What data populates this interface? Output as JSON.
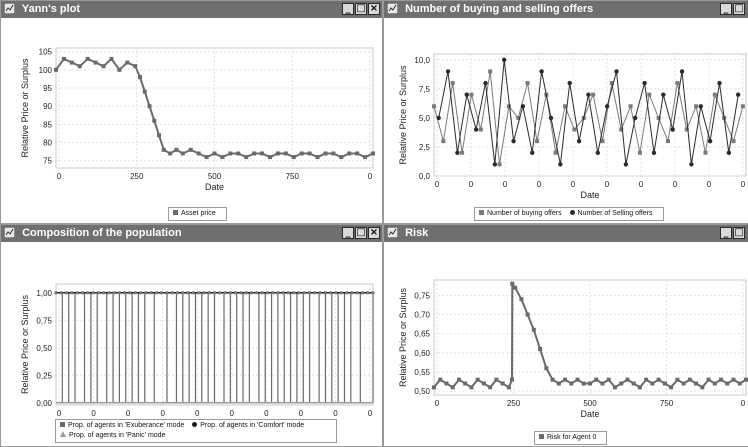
{
  "windows": [
    {
      "title": "Yann's plot",
      "chart_data": {
        "type": "line",
        "ylabel": "Relative Price or Surplus",
        "xlabel": "Date",
        "x_ticks": [
          "0",
          "250",
          "500",
          "750",
          "0"
        ],
        "y_ticks": [
          "75",
          "80",
          "85",
          "90",
          "95",
          "100",
          "105"
        ],
        "ylim": [
          73,
          106
        ],
        "xlim": [
          0,
          1000
        ],
        "series": [
          {
            "name": "Asset price",
            "color": "#6a6a6a",
            "marker": "square",
            "x": [
              0,
              25,
              50,
              75,
              100,
              125,
              150,
              175,
              200,
              225,
              250,
              265,
              280,
              295,
              310,
              325,
              340,
              360,
              380,
              400,
              425,
              450,
              475,
              500,
              525,
              550,
              575,
              600,
              625,
              650,
              675,
              700,
              725,
              750,
              775,
              800,
              825,
              850,
              875,
              900,
              925,
              950,
              975,
              1000
            ],
            "y": [
              100,
              103,
              102,
              101,
              103,
              102,
              101,
              103,
              100,
              102,
              101,
              98,
              94,
              90,
              86,
              82,
              78,
              77,
              78,
              77,
              78,
              77,
              76,
              77,
              76,
              77,
              77,
              76,
              77,
              77,
              76,
              77,
              77,
              76,
              77,
              77,
              76,
              77,
              77,
              76,
              77,
              77,
              76,
              77
            ]
          }
        ]
      },
      "legend": [
        "Asset price"
      ]
    },
    {
      "title": "Number of buying and selling offers",
      "chart_data": {
        "type": "line",
        "ylabel": "Relative Price or Surplus",
        "xlabel": "Date",
        "x_ticks": [
          "0",
          "0",
          "0",
          "0",
          "0",
          "0",
          "0",
          "0",
          "0",
          "0"
        ],
        "y_ticks": [
          "0,0",
          "2,5",
          "5,0",
          "7,5",
          "10,0"
        ],
        "ylim": [
          0,
          10.5
        ],
        "xlim": [
          0,
          100
        ],
        "series": [
          {
            "name": "Number of buying offers",
            "color": "#7a7a7a",
            "marker": "square",
            "x": [
              0,
              3,
              6,
              9,
              12,
              15,
              18,
              21,
              24,
              27,
              30,
              33,
              36,
              39,
              42,
              45,
              48,
              51,
              54,
              57,
              60,
              63,
              66,
              69,
              72,
              75,
              78,
              81,
              84,
              87,
              90,
              93,
              96,
              99
            ],
            "y": [
              6,
              3,
              8,
              2,
              7,
              4,
              9,
              1,
              6,
              5,
              8,
              3,
              7,
              2,
              6,
              4,
              5,
              7,
              3,
              8,
              4,
              6,
              2,
              7,
              5,
              3,
              8,
              4,
              6,
              2,
              7,
              5,
              3,
              6
            ]
          },
          {
            "name": "Number of Selling offers",
            "color": "#2a2a2a",
            "marker": "circle",
            "x": [
              1.5,
              4.5,
              7.5,
              10.5,
              13.5,
              16.5,
              19.5,
              22.5,
              25.5,
              28.5,
              31.5,
              34.5,
              37.5,
              40.5,
              43.5,
              46.5,
              49.5,
              52.5,
              55.5,
              58.5,
              61.5,
              64.5,
              67.5,
              70.5,
              73.5,
              76.5,
              79.5,
              82.5,
              85.5,
              88.5,
              91.5,
              94.5,
              97.5
            ],
            "y": [
              5,
              9,
              2,
              7,
              4,
              8,
              1,
              10,
              3,
              6,
              2,
              9,
              5,
              1,
              8,
              3,
              7,
              2,
              6,
              9,
              1,
              5,
              8,
              2,
              7,
              4,
              9,
              1,
              6,
              3,
              8,
              2,
              7
            ]
          }
        ]
      },
      "legend": [
        "Number of buying offers",
        "Number of Selling offers"
      ]
    },
    {
      "title": "Composition of the population",
      "chart_data": {
        "type": "line",
        "ylabel": "Relative Price or Surplus",
        "xlabel": "Date",
        "x_ticks": [
          "0",
          "0",
          "0",
          "0",
          "0",
          "0",
          "0",
          "0",
          "0",
          "0"
        ],
        "y_ticks": [
          "0,00",
          "0,25",
          "0,50",
          "0,75",
          "1,00"
        ],
        "ylim": [
          -0.02,
          1.08
        ],
        "xlim": [
          0,
          100
        ],
        "series": [
          {
            "name": "Prop. of agents in 'Exuberance' mode",
            "color": "#6a6a6a",
            "marker": "square",
            "switch_x": [
              2,
              4,
              6,
              9,
              11,
              13,
              16,
              18,
              20,
              22,
              24,
              26,
              28,
              31,
              35,
              38,
              40,
              42,
              44,
              46,
              48,
              50,
              53,
              55,
              57,
              59,
              61,
              64,
              66,
              68,
              70,
              72,
              74,
              76,
              78,
              80,
              83,
              85,
              87,
              89,
              91,
              93,
              96
            ]
          },
          {
            "name": "Prop. of agents in 'Comfort' mode",
            "color": "#1a1a1a",
            "marker": "circle"
          },
          {
            "name": "Prop. of agents in 'Panic' mode",
            "color": "#9a9a9a",
            "marker": "triangle"
          }
        ]
      },
      "legend": [
        "Prop. of agents in 'Exuberance' mode",
        "Prop. of agents in 'Comfort' mode",
        "Prop. of agents in 'Panic' mode"
      ]
    },
    {
      "title": "Risk",
      "chart_data": {
        "type": "line",
        "ylabel": "Relative Price or Surplus",
        "xlabel": "Date",
        "x_ticks": [
          "0",
          "250",
          "500",
          "750",
          "0"
        ],
        "y_ticks": [
          "0,50",
          "0,55",
          "0,60",
          "0,65",
          "0,70",
          "0,75"
        ],
        "ylim": [
          0.49,
          0.79
        ],
        "xlim": [
          0,
          1000
        ],
        "series": [
          {
            "name": "Risk for Agent 0",
            "color": "#6a6a6a",
            "marker": "square",
            "x": [
              0,
              20,
              40,
              60,
              80,
              100,
              120,
              140,
              160,
              180,
              200,
              220,
              240,
              250,
              251,
              260,
              280,
              300,
              320,
              340,
              360,
              380,
              400,
              420,
              440,
              460,
              480,
              500,
              520,
              540,
              560,
              580,
              600,
              620,
              640,
              660,
              680,
              700,
              720,
              740,
              760,
              780,
              800,
              820,
              840,
              860,
              880,
              900,
              920,
              940,
              960,
              980,
              1000
            ],
            "y": [
              0.51,
              0.53,
              0.52,
              0.51,
              0.53,
              0.52,
              0.51,
              0.53,
              0.52,
              0.51,
              0.53,
              0.52,
              0.51,
              0.53,
              0.78,
              0.77,
              0.74,
              0.7,
              0.66,
              0.61,
              0.56,
              0.53,
              0.52,
              0.53,
              0.52,
              0.53,
              0.52,
              0.52,
              0.53,
              0.52,
              0.53,
              0.51,
              0.52,
              0.53,
              0.52,
              0.51,
              0.53,
              0.52,
              0.53,
              0.52,
              0.51,
              0.53,
              0.52,
              0.53,
              0.52,
              0.51,
              0.53,
              0.52,
              0.53,
              0.52,
              0.53,
              0.52,
              0.53
            ]
          }
        ]
      },
      "legend": [
        "Risk for Agent 0"
      ]
    }
  ],
  "window_controls": {
    "minimize": "_",
    "maximize": "□",
    "close": "×"
  },
  "icon_name": "chart-window-icon"
}
